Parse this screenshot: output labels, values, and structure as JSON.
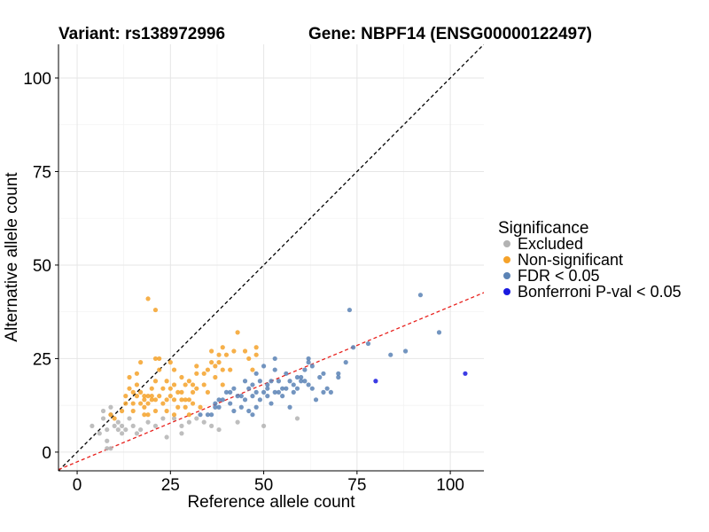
{
  "chart_data": {
    "type": "scatter",
    "title_left": "Variant: rs138972996",
    "title_right": "Gene: NBPF14 (ENSG00000122497)",
    "xlabel": "Reference allele count",
    "ylabel": "Alternative allele count",
    "xlim": [
      -5,
      109
    ],
    "ylim": [
      -5,
      109
    ],
    "xticks": [
      0,
      25,
      50,
      75,
      100
    ],
    "yticks": [
      0,
      25,
      50,
      75,
      100
    ],
    "grid": true,
    "reference_lines": [
      {
        "name": "identity",
        "slope": 1,
        "intercept": 0,
        "color": "#000000",
        "dash": true
      },
      {
        "name": "expected-ratio",
        "slope": 0.415,
        "intercept": -2.6,
        "color": "#e8201c",
        "dash": true
      }
    ],
    "legend": {
      "title": "Significance",
      "position": "right",
      "entries": [
        {
          "label": "Excluded",
          "color": "#b3b3b3"
        },
        {
          "label": "Non-significant",
          "color": "#f5a22a"
        },
        {
          "label": "FDR < 0.05",
          "color": "#5b83b5"
        },
        {
          "label": "Bonferroni P-val < 0.05",
          "color": "#1a1adf"
        }
      ]
    },
    "series": [
      {
        "name": "Excluded",
        "color": "#b3b3b3",
        "points": [
          [
            4,
            7
          ],
          [
            6,
            5
          ],
          [
            7,
            9
          ],
          [
            7,
            11
          ],
          [
            8,
            6
          ],
          [
            8,
            3
          ],
          [
            8,
            1
          ],
          [
            9,
            12
          ],
          [
            9,
            10
          ],
          [
            9,
            1
          ],
          [
            10,
            7
          ],
          [
            11,
            8
          ],
          [
            11,
            6
          ],
          [
            12,
            5
          ],
          [
            12,
            7
          ],
          [
            13,
            6
          ],
          [
            14,
            9
          ],
          [
            15,
            7
          ],
          [
            16,
            5
          ],
          [
            17,
            6
          ],
          [
            19,
            8
          ],
          [
            21,
            7
          ],
          [
            23,
            9
          ],
          [
            24,
            4
          ],
          [
            26,
            9
          ],
          [
            28,
            7
          ],
          [
            28,
            5
          ],
          [
            30,
            8
          ],
          [
            32,
            9
          ],
          [
            34,
            8
          ],
          [
            36,
            7
          ],
          [
            38,
            6
          ],
          [
            43,
            8
          ],
          [
            50,
            7
          ],
          [
            59,
            9
          ]
        ]
      },
      {
        "name": "Non-significant",
        "color": "#f5a22a",
        "points": [
          [
            9,
            10
          ],
          [
            10,
            9
          ],
          [
            12,
            11
          ],
          [
            13,
            15
          ],
          [
            13,
            13
          ],
          [
            14,
            17
          ],
          [
            14,
            20
          ],
          [
            15,
            16
          ],
          [
            15,
            13
          ],
          [
            15,
            11
          ],
          [
            16,
            18
          ],
          [
            16,
            15
          ],
          [
            16,
            21
          ],
          [
            17,
            24
          ],
          [
            17,
            16
          ],
          [
            17,
            13
          ],
          [
            18,
            10
          ],
          [
            18,
            15
          ],
          [
            18,
            12
          ],
          [
            18,
            14
          ],
          [
            19,
            41
          ],
          [
            19,
            15
          ],
          [
            19,
            13
          ],
          [
            19,
            10
          ],
          [
            20,
            14
          ],
          [
            20,
            15
          ],
          [
            20,
            17
          ],
          [
            21,
            38
          ],
          [
            21,
            25
          ],
          [
            21,
            14
          ],
          [
            21,
            19
          ],
          [
            21,
            11
          ],
          [
            22,
            25
          ],
          [
            22,
            22
          ],
          [
            22,
            15
          ],
          [
            23,
            17
          ],
          [
            23,
            13
          ],
          [
            24,
            14
          ],
          [
            24,
            19
          ],
          [
            24,
            11
          ],
          [
            25,
            24
          ],
          [
            25,
            17
          ],
          [
            25,
            15
          ],
          [
            26,
            18
          ],
          [
            26,
            14
          ],
          [
            26,
            22
          ],
          [
            26,
            10
          ],
          [
            27,
            12
          ],
          [
            27,
            16
          ],
          [
            28,
            16
          ],
          [
            28,
            20
          ],
          [
            28,
            14
          ],
          [
            29,
            14
          ],
          [
            29,
            12
          ],
          [
            29,
            18
          ],
          [
            30,
            14
          ],
          [
            30,
            19
          ],
          [
            30,
            10
          ],
          [
            31,
            13
          ],
          [
            31,
            16
          ],
          [
            31,
            18
          ],
          [
            32,
            23
          ],
          [
            32,
            21
          ],
          [
            32,
            17
          ],
          [
            33,
            12
          ],
          [
            34,
            21
          ],
          [
            34,
            18
          ],
          [
            35,
            22
          ],
          [
            35,
            16
          ],
          [
            36,
            24
          ],
          [
            36,
            27
          ],
          [
            37,
            20
          ],
          [
            37,
            23
          ],
          [
            38,
            24
          ],
          [
            38,
            26
          ],
          [
            39,
            22
          ],
          [
            39,
            28
          ],
          [
            39,
            18
          ],
          [
            40,
            26
          ],
          [
            41,
            22
          ],
          [
            42,
            27
          ],
          [
            43,
            32
          ],
          [
            45,
            27
          ],
          [
            46,
            25
          ],
          [
            47,
            22
          ],
          [
            48,
            26
          ],
          [
            48,
            28
          ]
        ]
      },
      {
        "name": "FDR < 0.05",
        "color": "#5b83b5",
        "points": [
          [
            33,
            10
          ],
          [
            35,
            10
          ],
          [
            36,
            10
          ],
          [
            37,
            13
          ],
          [
            37,
            12
          ],
          [
            38,
            12
          ],
          [
            38,
            14
          ],
          [
            39,
            14
          ],
          [
            40,
            16
          ],
          [
            41,
            16
          ],
          [
            41,
            13
          ],
          [
            42,
            17
          ],
          [
            42,
            11
          ],
          [
            43,
            15
          ],
          [
            44,
            15
          ],
          [
            44,
            12
          ],
          [
            45,
            14
          ],
          [
            45,
            19
          ],
          [
            46,
            11
          ],
          [
            46,
            17
          ],
          [
            47,
            18
          ],
          [
            47,
            15
          ],
          [
            47,
            10
          ],
          [
            48,
            16
          ],
          [
            48,
            21
          ],
          [
            48,
            12
          ],
          [
            49,
            19
          ],
          [
            49,
            14
          ],
          [
            50,
            23
          ],
          [
            50,
            16
          ],
          [
            51,
            15
          ],
          [
            51,
            17
          ],
          [
            51,
            18
          ],
          [
            52,
            19
          ],
          [
            52,
            13
          ],
          [
            53,
            16
          ],
          [
            53,
            22
          ],
          [
            53,
            25
          ],
          [
            54,
            19
          ],
          [
            54,
            16
          ],
          [
            55,
            17
          ],
          [
            55,
            15
          ],
          [
            56,
            17
          ],
          [
            56,
            21
          ],
          [
            57,
            19
          ],
          [
            57,
            12
          ],
          [
            58,
            16
          ],
          [
            58,
            18
          ],
          [
            59,
            17
          ],
          [
            59,
            20
          ],
          [
            60,
            19
          ],
          [
            60,
            20
          ],
          [
            61,
            19
          ],
          [
            61,
            22
          ],
          [
            62,
            24
          ],
          [
            62,
            25
          ],
          [
            62,
            18
          ],
          [
            63,
            23
          ],
          [
            63,
            17
          ],
          [
            64,
            14
          ],
          [
            65,
            20
          ],
          [
            66,
            16
          ],
          [
            66,
            21
          ],
          [
            67,
            17
          ],
          [
            68,
            16
          ],
          [
            70,
            21
          ],
          [
            70,
            20
          ],
          [
            72,
            24
          ],
          [
            73,
            38
          ],
          [
            74,
            28
          ],
          [
            78,
            29
          ],
          [
            84,
            26
          ],
          [
            88,
            27
          ],
          [
            92,
            42
          ],
          [
            97,
            32
          ]
        ]
      },
      {
        "name": "Bonferroni P-val < 0.05",
        "color": "#1a1adf",
        "points": [
          [
            80,
            19
          ],
          [
            104,
            21
          ]
        ]
      }
    ]
  }
}
